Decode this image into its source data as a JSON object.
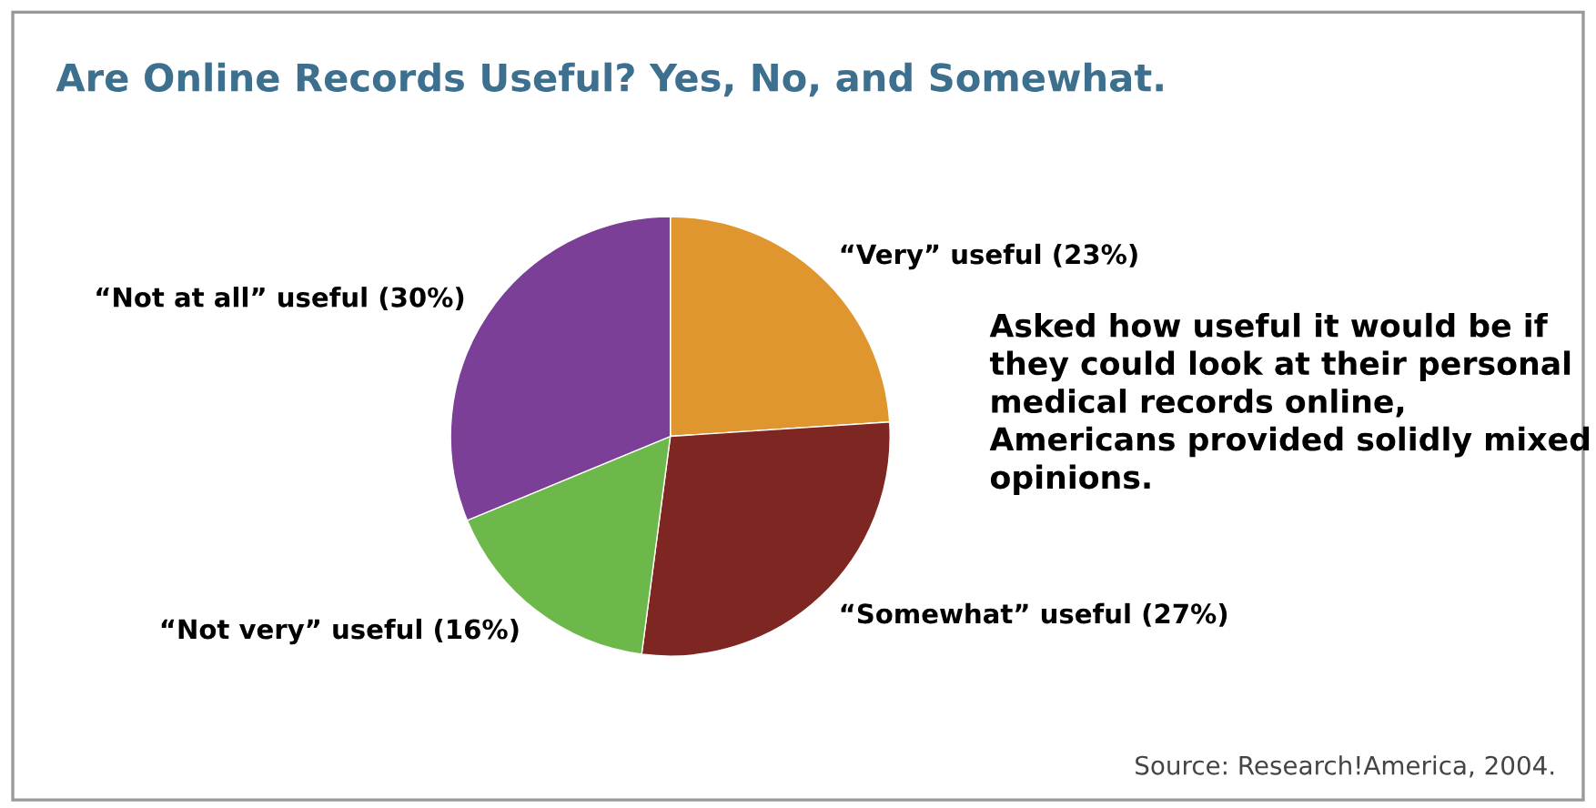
{
  "chart_data": {
    "type": "pie",
    "title": "Are Online Records Useful? Yes, No, and Somewhat.",
    "categories": [
      "“Very” useful",
      "“Somewhat” useful",
      "“Not very” useful",
      "“Not at all” useful"
    ],
    "values": [
      23,
      27,
      16,
      30
    ],
    "value_labels": [
      "(23%)",
      "(27%)",
      "(16%)",
      "(30%)"
    ],
    "colors": [
      "#e0962f",
      "#7e2622",
      "#6db84a",
      "#7b3f98"
    ],
    "annotations": [
      "Asked how useful it would be if they could look at their personal medical records online, Americans provided solidly mixed opinions.",
      "Source: Research!America, 2004."
    ]
  }
}
